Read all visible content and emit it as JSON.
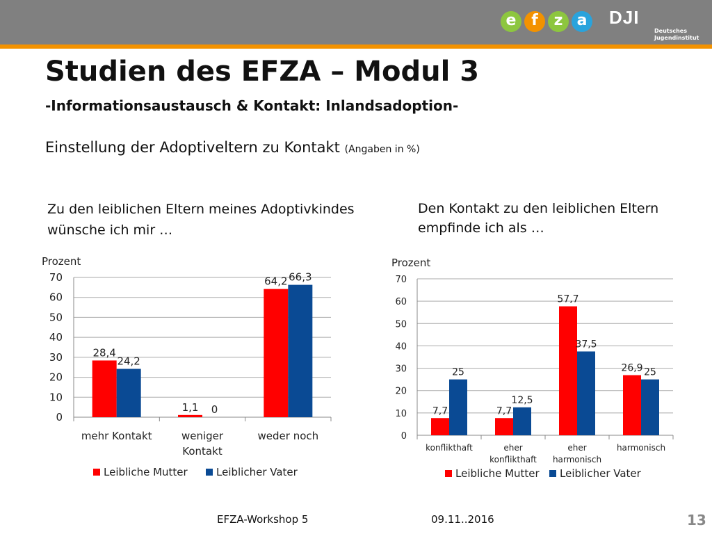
{
  "header": {
    "logo_letters": [
      "e",
      "f",
      "z",
      "a"
    ],
    "logo_colors": [
      "#8dc63f",
      "#f39200",
      "#8dc63f",
      "#29a3dc"
    ],
    "dji_mark": "DJI",
    "dji_name_line1": "Deutsches",
    "dji_name_line2": "Jugendinstitut"
  },
  "slide": {
    "title": "Studien des EFZA – Modul 3",
    "subtitle": "-Informationsaustausch & Kontakt: Inlandsadoption-",
    "section": "Einstellung der Adoptiveltern zu Kontakt",
    "section_note": "(Angaben in %)",
    "left_question_line1": "Zu den leiblichen Eltern meines Adoptivkindes",
    "left_question_line2": "wünsche ich mir …",
    "right_question_line1": "Den Kontakt zu den leiblichen Eltern",
    "right_question_line2": "empfinde ich als …"
  },
  "footer": {
    "event": "EFZA-Workshop 5",
    "date": "09.11..2016",
    "page": "13"
  },
  "colors": {
    "mutter": "#ff0000",
    "vater": "#0a4a94"
  },
  "chart_data": [
    {
      "type": "bar",
      "ylabel": "Prozent",
      "ylim": [
        0,
        70
      ],
      "yticks": [
        0,
        10,
        20,
        30,
        40,
        50,
        60,
        70
      ],
      "categories": [
        [
          "mehr Kontakt"
        ],
        [
          "weniger",
          "Kontakt"
        ],
        [
          "weder noch"
        ]
      ],
      "series": [
        {
          "name": "Leibliche Mutter",
          "values": [
            28.4,
            1.1,
            64.2
          ],
          "labels": [
            "28,4",
            "1,1",
            "64,2"
          ]
        },
        {
          "name": "Leiblicher Vater",
          "values": [
            24.2,
            0,
            66.3
          ],
          "labels": [
            "24,2",
            "0",
            "66,3"
          ]
        }
      ],
      "legend": "bottom"
    },
    {
      "type": "bar",
      "ylabel": "Prozent",
      "ylim": [
        0,
        70
      ],
      "yticks": [
        0,
        10,
        20,
        30,
        40,
        50,
        60,
        70
      ],
      "categories": [
        [
          "konflikthaft"
        ],
        [
          "eher",
          "konflikthaft"
        ],
        [
          "eher",
          "harmonisch"
        ],
        [
          "harmonisch"
        ]
      ],
      "series": [
        {
          "name": "Leibliche Mutter",
          "values": [
            7.7,
            7.7,
            57.7,
            26.9
          ],
          "labels": [
            "7,7",
            "7,7",
            "57,7",
            "26,9"
          ]
        },
        {
          "name": "Leiblicher Vater",
          "values": [
            25,
            12.5,
            37.5,
            25
          ],
          "labels": [
            "25",
            "12,5",
            "37,5",
            "25"
          ]
        }
      ],
      "legend": "bottom"
    }
  ]
}
